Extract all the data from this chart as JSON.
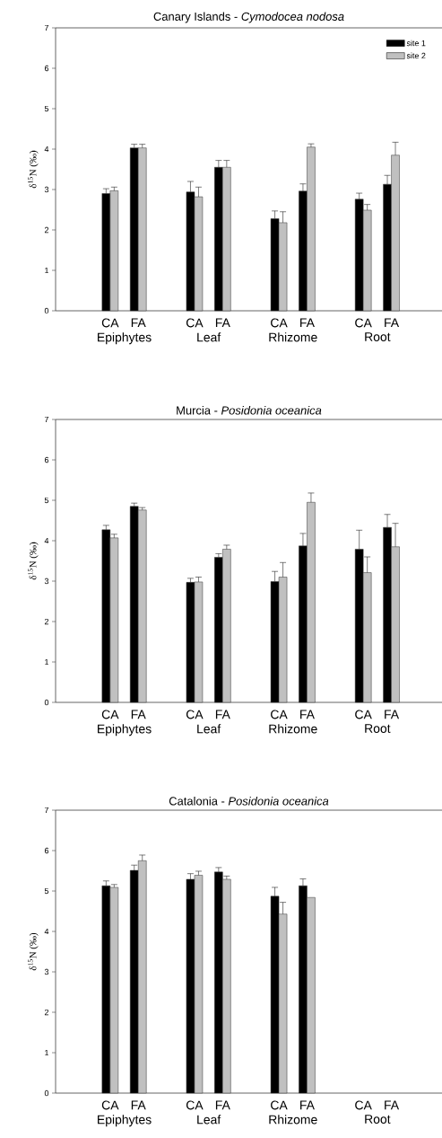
{
  "chart_data": [
    {
      "type": "bar",
      "title": "Canary Islands - *Cymodocea nodosa*",
      "ylabel": "δ$^{15}$N (‰)",
      "categories": [
        "CA",
        "FA",
        null,
        "CA",
        "FA",
        null,
        "CA",
        "FA",
        null,
        "CA",
        "FA"
      ],
      "series": [
        {
          "name": "site 1",
          "color": "#000000",
          "values": [
            2.9,
            4.03,
            null,
            2.94,
            3.55,
            null,
            2.28,
            2.96,
            null,
            2.76,
            3.13
          ],
          "errors": [
            [
              2.9,
              3.02
            ],
            [
              4.03,
              4.12
            ],
            null,
            [
              2.94,
              3.2
            ],
            [
              3.55,
              3.72
            ],
            null,
            [
              2.28,
              2.47
            ],
            [
              2.96,
              3.14
            ],
            null,
            [
              2.76,
              2.91
            ],
            [
              3.13,
              3.35
            ]
          ]
        },
        {
          "name": "site 2",
          "color": "#c0c0c0",
          "values": [
            2.97,
            4.03,
            null,
            2.82,
            3.55,
            null,
            2.18,
            4.05,
            null,
            2.49,
            3.85
          ],
          "errors": [
            [
              2.97,
              3.06
            ],
            [
              4.03,
              4.12
            ],
            null,
            [
              2.82,
              3.06
            ],
            [
              3.55,
              3.72
            ],
            null,
            [
              2.18,
              2.45
            ],
            [
              4.05,
              4.13
            ],
            null,
            [
              2.49,
              2.63
            ],
            [
              3.85,
              4.17
            ]
          ]
        }
      ],
      "annotations": [
        "Epiphytes",
        "Leaf",
        "Rhizome",
        "Root"
      ],
      "ylim": [
        0,
        7
      ],
      "yticks": [
        0,
        1,
        2,
        3,
        4,
        5,
        6,
        7
      ],
      "legend": "top right",
      "grid": false
    },
    {
      "type": "bar",
      "title": "Murcia - *Posidonia oceanica*",
      "ylabel": "δ$^{15}$N (‰)",
      "categories": [
        "CA",
        "FA",
        null,
        "CA",
        "FA",
        null,
        "CA",
        "FA",
        null,
        "CA",
        "FA"
      ],
      "series": [
        {
          "color": "#000000",
          "values": [
            4.27,
            4.85,
            null,
            2.97,
            3.59,
            null,
            2.99,
            3.87,
            null,
            3.79,
            4.33
          ],
          "errors": [
            [
              4.27,
              4.38
            ],
            [
              4.85,
              4.93
            ],
            null,
            [
              2.97,
              3.07
            ],
            [
              3.59,
              3.68
            ],
            null,
            [
              2.99,
              3.24
            ],
            [
              3.87,
              4.18
            ],
            null,
            [
              3.79,
              4.26
            ],
            [
              4.33,
              4.65
            ]
          ]
        },
        {
          "color": "#c0c0c0",
          "values": [
            4.07,
            4.76,
            null,
            2.98,
            3.79,
            null,
            3.1,
            4.95,
            null,
            3.21,
            3.85
          ],
          "errors": [
            [
              4.07,
              4.16
            ],
            [
              4.76,
              4.82
            ],
            null,
            [
              2.98,
              3.1
            ],
            [
              3.79,
              3.89
            ],
            null,
            [
              3.1,
              3.46
            ],
            [
              4.95,
              5.18
            ],
            null,
            [
              3.21,
              3.6
            ],
            [
              3.85,
              4.43
            ]
          ]
        }
      ],
      "annotations": [
        "Epiphytes",
        "Leaf",
        "Rhizome",
        "Root"
      ],
      "ylim": [
        0,
        7
      ],
      "yticks": [
        0,
        1,
        2,
        3,
        4,
        5,
        6,
        7
      ],
      "legend": false,
      "grid": false
    },
    {
      "type": "bar",
      "title": "Catalonia - *Posidonia oceanica*",
      "ylabel": "δ$^{15}$N (‰)",
      "categories": [
        "CA",
        "FA",
        null,
        "CA",
        "FA",
        null,
        "CA",
        "FA",
        null,
        "CA",
        "FA"
      ],
      "series": [
        {
          "color": "#000000",
          "values": [
            5.13,
            5.51,
            null,
            5.29,
            5.47,
            null,
            4.87,
            5.13,
            null,
            null,
            null
          ],
          "errors": [
            [
              5.13,
              5.25
            ],
            [
              5.51,
              5.64
            ],
            null,
            [
              5.29,
              5.43
            ],
            [
              5.47,
              5.58
            ],
            null,
            [
              4.87,
              5.09
            ],
            [
              5.13,
              5.3
            ],
            null,
            null,
            null
          ]
        },
        {
          "color": "#c0c0c0",
          "values": [
            5.09,
            5.75,
            null,
            5.39,
            5.29,
            null,
            4.43,
            4.84,
            null,
            null,
            null
          ],
          "errors": [
            [
              5.09,
              5.16
            ],
            [
              5.75,
              5.89
            ],
            null,
            [
              5.39,
              5.49
            ],
            [
              5.29,
              5.37
            ],
            null,
            [
              4.43,
              4.72
            ],
            null,
            null,
            null,
            null
          ]
        }
      ],
      "annotations": [
        "Epiphytes",
        "Leaf",
        "Rhizome",
        "Root"
      ],
      "ylim": [
        0,
        7
      ],
      "yticks": [
        0,
        1,
        2,
        3,
        4,
        5,
        6,
        7
      ],
      "legend": false,
      "grid": false
    }
  ]
}
